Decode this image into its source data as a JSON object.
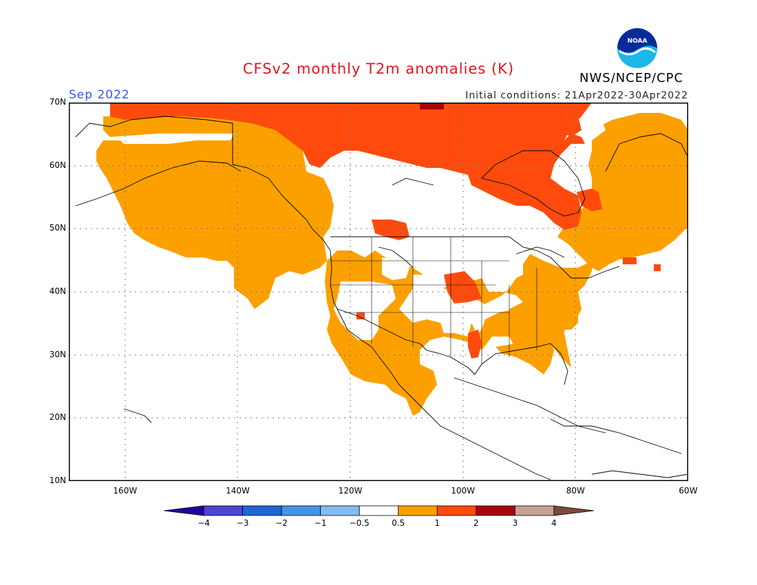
{
  "header": {
    "title": "CFSv2 monthly T2m anomalies (K)",
    "valid_month": "Sep 2022",
    "initial_conditions": "Initial conditions: 21Apr2022-30Apr2022",
    "organization": "NWS/NCEP/CPC",
    "logo_text": "NOAA"
  },
  "map": {
    "projection": "cylindrical",
    "lon_range": [
      -170,
      -60
    ],
    "lat_range": [
      10,
      70
    ],
    "grid": "dotted",
    "lat_ticks": [
      "10N",
      "20N",
      "30N",
      "40N",
      "50N",
      "60N",
      "70N"
    ],
    "lat_values": [
      10,
      20,
      30,
      40,
      50,
      60,
      70
    ],
    "lon_ticks": [
      "160W",
      "140W",
      "120W",
      "100W",
      "80W",
      "60W"
    ],
    "lon_values": [
      -160,
      -140,
      -120,
      -100,
      -80,
      -60
    ],
    "anomaly_regions": [
      {
        "level": "0.5-1",
        "color": "#fca000",
        "desc": "warm anomaly over most of Canada, western and central US, Mexico, southeastern US"
      },
      {
        "level": "1-2",
        "color": "#fe4b0d",
        "desc": "stronger warm anomaly over northern Canada, Hudson Bay region, central Plains"
      },
      {
        "level": "2-3",
        "color": "#a5060c",
        "desc": "small area near 70N 105W"
      }
    ]
  },
  "colorbar": {
    "labels": [
      "−4",
      "−3",
      "−2",
      "−1",
      "−0.5",
      "0.5",
      "1",
      "2",
      "3",
      "4"
    ],
    "colors": [
      "#26009e",
      "#4c44d1",
      "#2166d4",
      "#4494ec",
      "#82bcf2",
      "#ffffff",
      "#fca000",
      "#fe4b0d",
      "#a5060c",
      "#c8a094",
      "#7a4a3a"
    ]
  }
}
